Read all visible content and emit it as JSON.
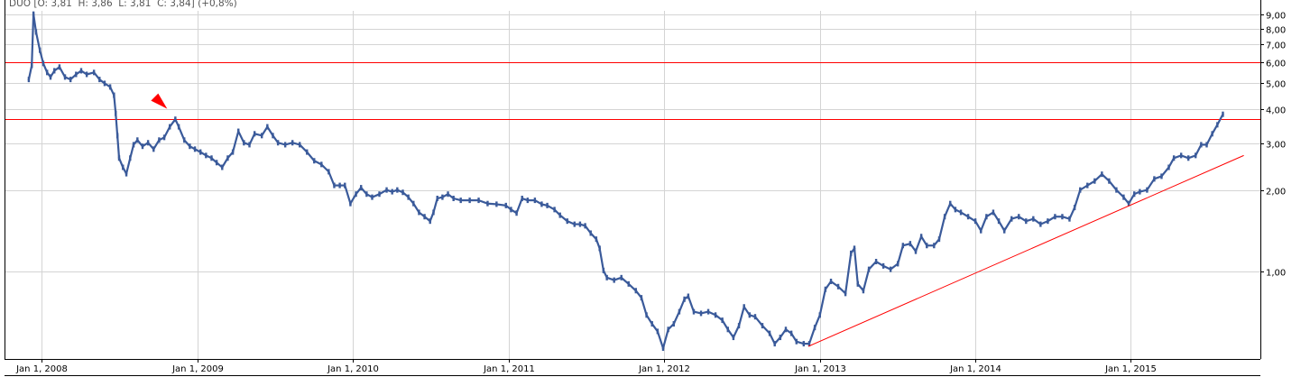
{
  "header": {
    "symbol": "DUO",
    "ohlc_text": "DUO [O: 3,81  H: 3,86  L: 3,81  C: 3,84] (+0,8%)"
  },
  "chart_data": {
    "type": "line",
    "title": "",
    "xlabel": "",
    "ylabel": "",
    "y_scale": "log",
    "ylim": [
      0.474,
      10.2
    ],
    "xlim": [
      "2007-10-06",
      "2015-11-01"
    ],
    "grid": true,
    "y_axis_position": "right",
    "x_ticks": [
      {
        "date": "2008-01-01",
        "label": "Jan 1, 2008"
      },
      {
        "date": "2009-01-01",
        "label": "Jan 1, 2009"
      },
      {
        "date": "2010-01-01",
        "label": "Jan 1, 2010"
      },
      {
        "date": "2011-01-01",
        "label": "Jan 1, 2011"
      },
      {
        "date": "2012-01-01",
        "label": "Jan 1, 2012"
      },
      {
        "date": "2013-01-01",
        "label": "Jan 1, 2013"
      },
      {
        "date": "2014-01-01",
        "label": "Jan 1, 2014"
      },
      {
        "date": "2015-01-01",
        "label": "Jan 1, 2015"
      }
    ],
    "y_ticks": [
      {
        "value": 1,
        "label": "1,00"
      },
      {
        "value": 2,
        "label": "2,00"
      },
      {
        "value": 3,
        "label": "3,00"
      },
      {
        "value": 4,
        "label": "4,00"
      },
      {
        "value": 5,
        "label": "5,00"
      },
      {
        "value": 6,
        "label": "6,00"
      },
      {
        "value": 7,
        "label": "7,00"
      },
      {
        "value": 8,
        "label": "8,00"
      },
      {
        "value": 9,
        "label": "9,00"
      }
    ],
    "colors": {
      "price": "#3a5a9a",
      "annotation": "#ff0000",
      "grid": "#d4d4d4",
      "axis": "#000000"
    },
    "horizontal_lines": [
      6.0,
      3.7
    ],
    "trendline": {
      "start": {
        "date": "2012-12-05",
        "value": 0.528
      },
      "end": {
        "date": "2015-09-23",
        "value": 2.7
      }
    },
    "marker": {
      "type": "arrow-down-right",
      "date": "2008-10-05",
      "value": 4.28
    },
    "series": [
      {
        "x": [
          "2007-12-02",
          "2007-12-09",
          "2007-12-13",
          "2007-12-19",
          "2007-12-28",
          "2008-01-05",
          "2008-01-14",
          "2008-01-22",
          "2008-01-31",
          "2008-02-12",
          "2008-02-25",
          "2008-03-09",
          "2008-03-22",
          "2008-04-03",
          "2008-04-16",
          "2008-05-03",
          "2008-05-16",
          "2008-05-28",
          "2008-06-10",
          "2008-06-19",
          "2008-06-23",
          "2008-06-27",
          "2008-07-01",
          "2008-07-10",
          "2008-07-18",
          "2008-07-27",
          "2008-08-04",
          "2008-08-13",
          "2008-08-25",
          "2008-09-07",
          "2008-09-20",
          "2008-10-03",
          "2008-10-15",
          "2008-10-28",
          "2008-11-10",
          "2008-11-18",
          "2008-12-01",
          "2008-12-14",
          "2008-12-26",
          "2009-01-08",
          "2009-01-21",
          "2009-02-03",
          "2009-02-15",
          "2009-02-28",
          "2009-03-13",
          "2009-03-25",
          "2009-04-07",
          "2009-04-20",
          "2009-05-03",
          "2009-05-15",
          "2009-06-01",
          "2009-06-14",
          "2009-06-27",
          "2009-07-09",
          "2009-07-26",
          "2009-08-12",
          "2009-08-29",
          "2009-09-15",
          "2009-10-02",
          "2009-10-19",
          "2009-11-05",
          "2009-11-18",
          "2009-12-01",
          "2009-12-13",
          "2009-12-26",
          "2010-01-08",
          "2010-01-20",
          "2010-02-02",
          "2010-02-15",
          "2010-03-04",
          "2010-03-21",
          "2010-04-03",
          "2010-04-15",
          "2010-04-28",
          "2010-05-11",
          "2010-05-23",
          "2010-06-05",
          "2010-06-18",
          "2010-07-01",
          "2010-07-09",
          "2010-07-18",
          "2010-07-30",
          "2010-08-12",
          "2010-08-25",
          "2010-09-11",
          "2010-10-02",
          "2010-10-23",
          "2010-11-13",
          "2010-12-04",
          "2010-12-26",
          "2011-01-07",
          "2011-01-20",
          "2011-02-02",
          "2011-02-15",
          "2011-03-04",
          "2011-03-20",
          "2011-04-02",
          "2011-04-19",
          "2011-05-02",
          "2011-05-19",
          "2011-06-05",
          "2011-06-18",
          "2011-06-30",
          "2011-07-13",
          "2011-07-26",
          "2011-08-03",
          "2011-08-12",
          "2011-08-20",
          "2011-09-06",
          "2011-09-23",
          "2011-10-10",
          "2011-10-27",
          "2011-11-09",
          "2011-11-21",
          "2011-12-04",
          "2011-12-17",
          "2011-12-30",
          "2012-01-11",
          "2012-01-24",
          "2012-02-06",
          "2012-02-18",
          "2012-02-27",
          "2012-03-11",
          "2012-03-28",
          "2012-04-14",
          "2012-05-01",
          "2012-05-17",
          "2012-05-30",
          "2012-06-12",
          "2012-06-25",
          "2012-07-07",
          "2012-07-20",
          "2012-08-02",
          "2012-08-19",
          "2012-09-05",
          "2012-09-17",
          "2012-09-30",
          "2012-10-13",
          "2012-10-26",
          "2012-11-07",
          "2012-11-24",
          "2012-12-07",
          "2012-12-20",
          "2013-01-01",
          "2013-01-14",
          "2013-01-27",
          "2013-02-13",
          "2013-03-02",
          "2013-03-15",
          "2013-03-23",
          "2013-03-31",
          "2013-04-13",
          "2013-04-26",
          "2013-05-13",
          "2013-05-30",
          "2013-06-16",
          "2013-07-03",
          "2013-07-15",
          "2013-08-01",
          "2013-08-14",
          "2013-08-27",
          "2013-09-09",
          "2013-09-26",
          "2013-10-08",
          "2013-10-21",
          "2013-11-03",
          "2013-11-15",
          "2013-11-28",
          "2013-12-15",
          "2014-01-01",
          "2014-01-14",
          "2014-01-27",
          "2014-02-12",
          "2014-02-25",
          "2014-03-10",
          "2014-03-27",
          "2014-04-13",
          "2014-04-30",
          "2014-05-17",
          "2014-06-03",
          "2014-06-20",
          "2014-07-07",
          "2014-07-24",
          "2014-08-10",
          "2014-08-22",
          "2014-09-04",
          "2014-09-21",
          "2014-10-08",
          "2014-10-25",
          "2014-11-11",
          "2014-11-28",
          "2014-12-15",
          "2014-12-27",
          "2015-01-09",
          "2015-01-22",
          "2015-02-08",
          "2015-02-25",
          "2015-03-14",
          "2015-03-31",
          "2015-04-12",
          "2015-04-29",
          "2015-05-16",
          "2015-06-02",
          "2015-06-15",
          "2015-06-28",
          "2015-07-11",
          "2015-07-23",
          "2015-08-05"
        ],
        "values": [
          5.17,
          5.83,
          9.04,
          7.76,
          6.64,
          5.93,
          5.49,
          5.28,
          5.57,
          5.75,
          5.28,
          5.17,
          5.4,
          5.57,
          5.4,
          5.49,
          5.17,
          5.0,
          4.85,
          4.52,
          3.87,
          3.2,
          2.64,
          2.44,
          2.31,
          2.64,
          2.96,
          3.08,
          2.92,
          3.01,
          2.85,
          3.08,
          3.15,
          3.45,
          3.68,
          3.45,
          3.08,
          2.92,
          2.85,
          2.78,
          2.7,
          2.64,
          2.54,
          2.44,
          2.64,
          2.78,
          3.32,
          3.01,
          2.96,
          3.25,
          3.2,
          3.45,
          3.2,
          3.01,
          2.96,
          3.01,
          2.96,
          2.78,
          2.58,
          2.5,
          2.35,
          2.09,
          2.09,
          2.09,
          1.79,
          1.94,
          2.05,
          1.94,
          1.89,
          1.94,
          2.01,
          1.98,
          2.01,
          1.97,
          1.89,
          1.79,
          1.66,
          1.6,
          1.54,
          1.66,
          1.87,
          1.89,
          1.94,
          1.87,
          1.84,
          1.84,
          1.84,
          1.79,
          1.78,
          1.76,
          1.7,
          1.65,
          1.87,
          1.84,
          1.84,
          1.78,
          1.76,
          1.7,
          1.62,
          1.54,
          1.5,
          1.5,
          1.48,
          1.39,
          1.32,
          1.22,
          1.01,
          0.95,
          0.93,
          0.95,
          0.9,
          0.85,
          0.8,
          0.69,
          0.64,
          0.6,
          0.52,
          0.61,
          0.64,
          0.71,
          0.79,
          0.81,
          0.71,
          0.7,
          0.71,
          0.69,
          0.66,
          0.61,
          0.57,
          0.63,
          0.74,
          0.69,
          0.68,
          0.63,
          0.59,
          0.54,
          0.57,
          0.61,
          0.59,
          0.55,
          0.54,
          0.54,
          0.62,
          0.69,
          0.86,
          0.92,
          0.88,
          0.83,
          1.17,
          1.22,
          0.9,
          0.85,
          1.02,
          1.09,
          1.05,
          1.02,
          1.07,
          1.25,
          1.27,
          1.19,
          1.35,
          1.25,
          1.25,
          1.32,
          1.6,
          1.79,
          1.7,
          1.66,
          1.6,
          1.54,
          1.42,
          1.6,
          1.66,
          1.54,
          1.42,
          1.57,
          1.6,
          1.54,
          1.57,
          1.5,
          1.54,
          1.6,
          1.6,
          1.57,
          1.73,
          2.01,
          2.09,
          2.17,
          2.3,
          2.17,
          2.01,
          1.89,
          1.79,
          1.94,
          1.98,
          2.01,
          2.21,
          2.26,
          2.44,
          2.64,
          2.7,
          2.64,
          2.7,
          2.96,
          2.96,
          3.25,
          3.51,
          3.84
        ]
      }
    ]
  }
}
